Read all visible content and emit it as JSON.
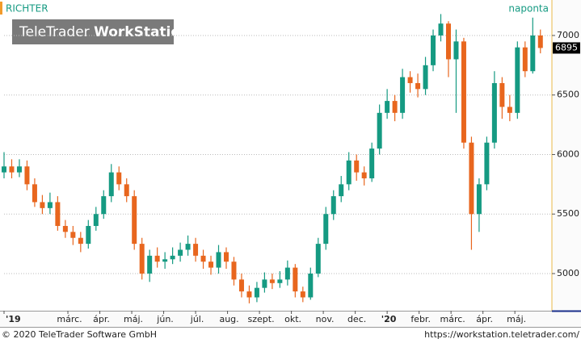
{
  "chart_data": {
    "type": "candlestick",
    "title": "RICHTER",
    "subtitle": "naponta",
    "watermark": [
      "TeleTrader",
      "WorkStation"
    ],
    "footer_left": "© 2020 TeleTrader Software GmbH",
    "footer_right": "https://workstation.teletrader.com/",
    "x": [
      0,
      0.24,
      0.48,
      0.72,
      0.96,
      1.2,
      1.44,
      1.68,
      1.92,
      2.16,
      2.4,
      2.64,
      2.88,
      3.12,
      3.36,
      3.6,
      3.84,
      4.08,
      4.32,
      4.56,
      4.8,
      5.04,
      5.28,
      5.52,
      5.76,
      6,
      6.24,
      6.48,
      6.72,
      6.96,
      7.2,
      7.44,
      7.68,
      7.92,
      8.16,
      8.4,
      8.64,
      8.88,
      9.12,
      9.36,
      9.6,
      9.84,
      10.08,
      10.32,
      10.56,
      10.8,
      11.04,
      11.28,
      11.52,
      11.76,
      12,
      12.24,
      12.48,
      12.72,
      12.96,
      13.2,
      13.44,
      13.68,
      13.92,
      14.16,
      14.4,
      14.64,
      14.88,
      15.12,
      15.36,
      15.6,
      15.84,
      16.08,
      16.32,
      16.56,
      16.8
    ],
    "open": [
      5850,
      5900,
      5850,
      5900,
      5750,
      5600,
      5550,
      5600,
      5400,
      5350,
      5300,
      5250,
      5400,
      5500,
      5650,
      5850,
      5750,
      5650,
      5250,
      5000,
      5150,
      5100,
      5120,
      5150,
      5200,
      5250,
      5150,
      5100,
      5050,
      5180,
      5100,
      4950,
      4850,
      4800,
      4880,
      4950,
      4920,
      4950,
      5050,
      4850,
      4800,
      5000,
      5250,
      5500,
      5650,
      5750,
      5950,
      5850,
      5800,
      6050,
      6350,
      6450,
      6350,
      6650,
      6600,
      6550,
      6750,
      7000,
      7100,
      6800,
      6950,
      6100,
      5500,
      5750,
      6100,
      6600,
      6400,
      6350,
      6900,
      6700,
      7000
    ],
    "high": [
      6020,
      5960,
      5960,
      5950,
      5800,
      5660,
      5680,
      5650,
      5450,
      5400,
      5350,
      5450,
      5560,
      5700,
      5920,
      5900,
      5800,
      5700,
      5300,
      5200,
      5220,
      5180,
      5220,
      5260,
      5320,
      5300,
      5200,
      5150,
      5240,
      5220,
      5140,
      5000,
      4900,
      4930,
      5010,
      5000,
      5020,
      5110,
      5080,
      4890,
      5050,
      5300,
      5560,
      5700,
      5820,
      6020,
      6000,
      5900,
      6100,
      6420,
      6550,
      6500,
      6720,
      6700,
      6680,
      6820,
      7050,
      7180,
      7120,
      7050,
      6980,
      6150,
      5800,
      6150,
      6700,
      6650,
      6500,
      6950,
      6950,
      7150,
      7050
    ],
    "low": [
      5800,
      5800,
      5810,
      5700,
      5560,
      5500,
      5500,
      5360,
      5300,
      5240,
      5180,
      5210,
      5360,
      5460,
      5600,
      5700,
      5600,
      5200,
      4950,
      4930,
      5050,
      5040,
      5080,
      5100,
      5150,
      5100,
      5040,
      4990,
      5000,
      5040,
      4900,
      4800,
      4750,
      4760,
      4840,
      4870,
      4880,
      4900,
      4800,
      4760,
      4780,
      4970,
      5200,
      5450,
      5600,
      5700,
      5780,
      5740,
      5770,
      6000,
      6300,
      6280,
      6300,
      6520,
      6480,
      6500,
      6700,
      6950,
      6650,
      6350,
      6050,
      5200,
      5350,
      5700,
      6050,
      6300,
      6280,
      6300,
      6650,
      6680,
      6850
    ],
    "close": [
      5900,
      5850,
      5900,
      5750,
      5600,
      5550,
      5600,
      5400,
      5350,
      5300,
      5250,
      5400,
      5500,
      5650,
      5850,
      5750,
      5650,
      5250,
      5000,
      5150,
      5100,
      5120,
      5150,
      5200,
      5250,
      5150,
      5100,
      5050,
      5180,
      5100,
      4950,
      4850,
      4800,
      4880,
      4950,
      4920,
      4950,
      5050,
      4850,
      4800,
      5000,
      5250,
      5500,
      5650,
      5750,
      5950,
      5850,
      5800,
      6050,
      6350,
      6450,
      6350,
      6650,
      6600,
      6550,
      6750,
      7000,
      7100,
      6800,
      6950,
      6100,
      5500,
      5750,
      6100,
      6600,
      6400,
      6350,
      6900,
      6700,
      7000,
      6895
    ],
    "up_color": "#159a82",
    "down_color": "#e8661e",
    "xlim": [
      0,
      17.16
    ],
    "xticks": [
      {
        "value": 0,
        "label": "'19"
      },
      {
        "value": 2,
        "label": "márc."
      },
      {
        "value": 3,
        "label": "ápr."
      },
      {
        "value": 4,
        "label": "máj."
      },
      {
        "value": 5,
        "label": "jún."
      },
      {
        "value": 6,
        "label": "júl."
      },
      {
        "value": 7,
        "label": "aug."
      },
      {
        "value": 8,
        "label": "szept."
      },
      {
        "value": 9,
        "label": "okt."
      },
      {
        "value": 10,
        "label": "nov."
      },
      {
        "value": 11,
        "label": "dec."
      },
      {
        "value": 12,
        "label": "'20"
      },
      {
        "value": 13,
        "label": "febr."
      },
      {
        "value": 14,
        "label": "márc."
      },
      {
        "value": 15,
        "label": "ápr."
      },
      {
        "value": 16,
        "label": "máj."
      }
    ],
    "ylim": [
      4688,
      7298
    ],
    "yticks": [
      5000,
      5500,
      6000,
      6500,
      7000
    ],
    "grid": true
  }
}
